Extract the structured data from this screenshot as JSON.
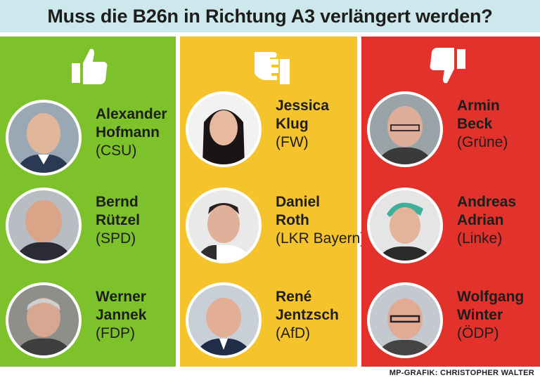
{
  "title": "Muss die B26n in Richtung A3 verlängert werden?",
  "columns": [
    {
      "vote": "yes",
      "color": "#7dc22a",
      "icon": "thumbs-up-icon",
      "people": [
        {
          "first": "Alexander",
          "last": "Hofmann",
          "party": "(CSU)"
        },
        {
          "first": "Bernd",
          "last": "Rützel",
          "party": "(SPD)"
        },
        {
          "first": "Werner",
          "last": "Jannek",
          "party": "(FDP)"
        }
      ]
    },
    {
      "vote": "neutral",
      "color": "#f5c42c",
      "icon": "thumbs-sideways-icon",
      "people": [
        {
          "first": "Jessica",
          "last": "Klug",
          "party": "(FW)"
        },
        {
          "first": "Daniel",
          "last": "Roth",
          "party": "(LKR Bayern)"
        },
        {
          "first": "René",
          "last": "Jentzsch",
          "party": "(AfD)"
        }
      ]
    },
    {
      "vote": "no",
      "color": "#e3322b",
      "icon": "thumbs-down-icon",
      "people": [
        {
          "first": "Armin",
          "last": "Beck",
          "party": "(Grüne)"
        },
        {
          "first": "Andreas",
          "last": "Adrian",
          "party": "(Linke)"
        },
        {
          "first": "Wolfgang",
          "last": "Winter",
          "party": "(ÖDP)"
        }
      ]
    }
  ],
  "credit": "MP-GRAFIK: CHRISTOPHER WALTER"
}
